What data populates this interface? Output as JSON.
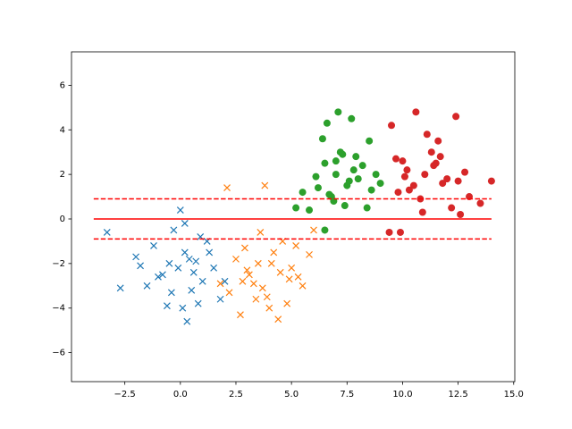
{
  "chart_data": {
    "type": "scatter",
    "xlim": [
      -4.9,
      15.05
    ],
    "ylim": [
      -7.3,
      7.5
    ],
    "xticks": [
      {
        "value": -2.5,
        "label": "−2.5"
      },
      {
        "value": 0,
        "label": "0.0"
      },
      2.5,
      {
        "value": 5,
        "label": "5.0"
      },
      7.5,
      {
        "value": 10,
        "label": "10.0"
      },
      12.5,
      {
        "value": 15,
        "label": "15.0"
      }
    ],
    "yticks": [
      {
        "value": -6,
        "label": "−6"
      },
      {
        "value": -4,
        "label": "−4"
      },
      {
        "value": -2,
        "label": "−2"
      },
      0,
      2,
      4,
      6
    ],
    "series": [
      {
        "color": "#1f77b4",
        "marker": "x",
        "x": [
          -0.5,
          0.2,
          1.0,
          -1.2,
          0.5,
          -0.3,
          1.5,
          -2.0,
          0.0,
          0.8,
          -0.8,
          1.2,
          -1.5,
          0.3,
          -0.1,
          2.0,
          -3.3,
          0.4,
          1.8,
          -0.6,
          0.9,
          -1.0,
          0.1,
          -2.7,
          0.6,
          1.3,
          -0.4,
          0.2,
          -1.8,
          0.7
        ],
        "values": [
          -2.0,
          -1.5,
          -2.8,
          -1.2,
          -3.2,
          -0.5,
          -2.2,
          -1.7,
          0.4,
          -3.8,
          -2.5,
          -1.0,
          -3.0,
          -4.6,
          -2.2,
          -2.8,
          -0.6,
          -1.8,
          -3.6,
          -3.9,
          -0.8,
          -2.6,
          -4.0,
          -3.1,
          -2.4,
          -1.5,
          -3.3,
          -0.2,
          -2.1,
          -1.9
        ]
      },
      {
        "color": "#ff7f0e",
        "marker": "x",
        "x": [
          3.5,
          4.2,
          2.8,
          5.0,
          3.9,
          4.6,
          3.1,
          5.5,
          2.5,
          4.0,
          3.6,
          4.9,
          2.2,
          5.8,
          3.3,
          4.4,
          2.7,
          3.8,
          4.8,
          5.2,
          3.0,
          4.1,
          2.1,
          3.7,
          6.0,
          4.5,
          2.9,
          3.4,
          5.3,
          1.8
        ],
        "values": [
          -2.0,
          -1.5,
          -2.8,
          -2.2,
          -3.5,
          -1.0,
          -2.5,
          -3.0,
          -1.8,
          -4.0,
          -0.6,
          -2.7,
          -3.3,
          -1.6,
          -2.9,
          -4.5,
          -4.3,
          1.5,
          -3.8,
          -1.2,
          -2.3,
          -2.0,
          1.4,
          -3.1,
          -0.5,
          -2.4,
          -1.3,
          -3.6,
          -2.6,
          -2.9
        ]
      },
      {
        "color": "#2ca02c",
        "marker": "o",
        "x": [
          7.0,
          7.5,
          6.5,
          8.0,
          7.2,
          6.8,
          7.8,
          8.5,
          6.2,
          7.4,
          6.6,
          7.9,
          5.5,
          8.8,
          7.1,
          6.9,
          7.6,
          8.2,
          6.4,
          7.3,
          5.8,
          9.0,
          6.7,
          7.7,
          8.4,
          6.1,
          7.0,
          5.2,
          6.5,
          8.6
        ],
        "values": [
          2.0,
          1.5,
          2.5,
          1.8,
          3.0,
          1.0,
          2.2,
          3.5,
          1.4,
          0.6,
          4.3,
          2.8,
          1.2,
          2.0,
          4.8,
          0.8,
          1.7,
          2.4,
          3.6,
          2.9,
          0.4,
          1.6,
          1.1,
          4.5,
          0.5,
          1.9,
          2.6,
          0.5,
          -0.5,
          1.3
        ]
      },
      {
        "color": "#d62728",
        "marker": "o",
        "x": [
          11.0,
          10.5,
          11.5,
          12.0,
          10.2,
          11.3,
          9.8,
          12.5,
          10.8,
          11.7,
          9.5,
          13.0,
          10.0,
          11.1,
          12.2,
          9.9,
          11.8,
          10.6,
          12.8,
          13.5,
          14.0,
          9.4,
          11.4,
          10.3,
          12.4,
          10.9,
          11.6,
          10.1,
          12.6,
          9.7
        ],
        "values": [
          2.0,
          1.5,
          2.5,
          1.8,
          2.2,
          3.0,
          1.2,
          1.7,
          0.9,
          2.8,
          4.2,
          1.0,
          2.6,
          3.8,
          0.5,
          -0.6,
          1.6,
          4.8,
          2.1,
          0.7,
          1.7,
          -0.6,
          2.4,
          1.3,
          4.6,
          0.3,
          3.5,
          1.9,
          0.2,
          2.7
        ]
      }
    ],
    "lines": [
      {
        "y": 0,
        "xmin": -3.9,
        "xmax": 14.0,
        "color": "#ff0000",
        "style": "solid"
      },
      {
        "y": 0.9,
        "xmin": -3.9,
        "xmax": 14.0,
        "color": "#ff0000",
        "style": "dashed"
      },
      {
        "y": -0.9,
        "xmin": -3.9,
        "xmax": 14.0,
        "color": "#ff0000",
        "style": "dashed"
      }
    ]
  }
}
